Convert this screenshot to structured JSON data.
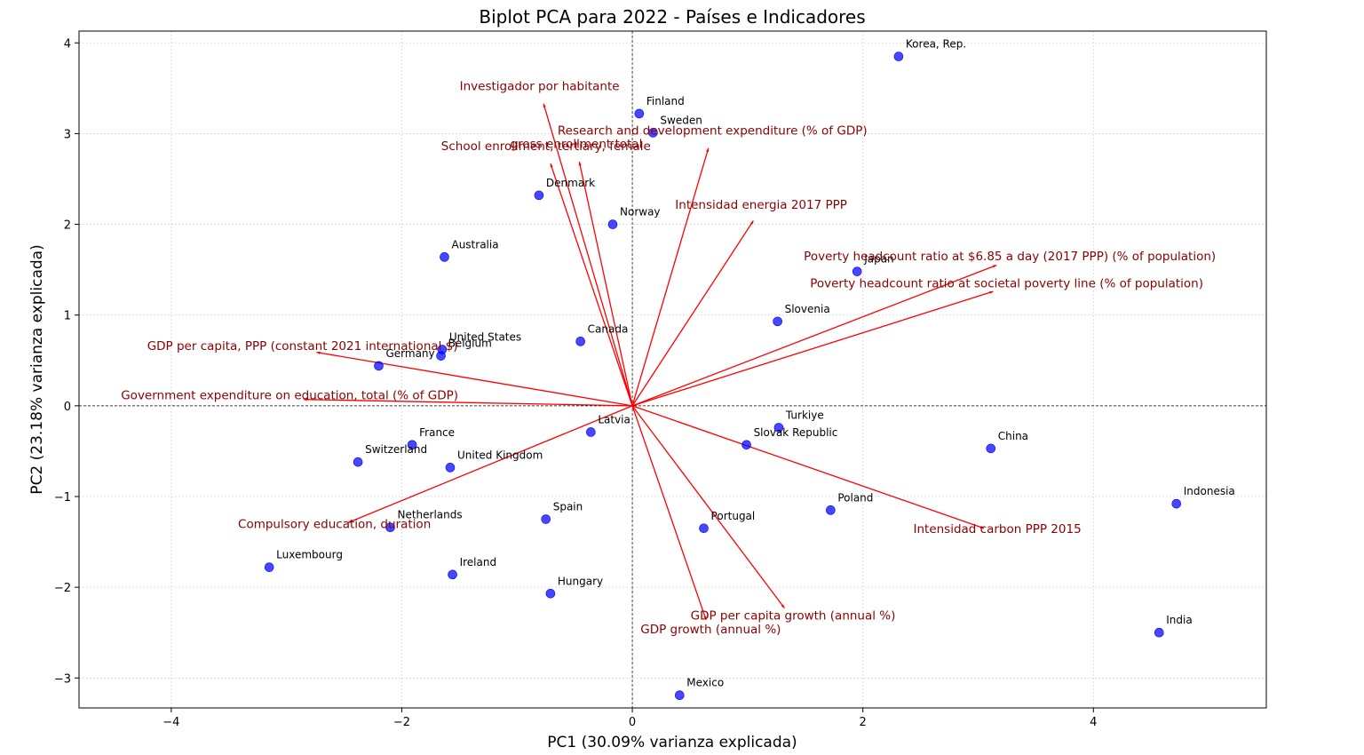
{
  "chart_data": {
    "type": "scatter",
    "title": "Biplot PCA para 2022 - Países e Indicadores",
    "xlabel": "PC1 (30.09% varianza explicada)",
    "ylabel": "PC2 (23.18% varianza explicada)",
    "xlim": [
      -4.8,
      5.5
    ],
    "ylim": [
      -3.33,
      4.13
    ],
    "xticks": [
      -4,
      -2,
      0,
      2,
      4
    ],
    "yticks": [
      -3,
      -2,
      -1,
      0,
      1,
      2,
      3,
      4
    ],
    "xtick_labels": [
      "−4",
      "−2",
      "0",
      "2",
      "4"
    ],
    "ytick_labels": [
      "−3",
      "−2",
      "−1",
      "0",
      "1",
      "2",
      "3",
      "4"
    ],
    "grid": true,
    "point_color": "#0000ff",
    "arrow_color": "#ff0000",
    "indicator_color": "#8b0000",
    "points": [
      {
        "name": "Korea, Rep.",
        "x": 2.31,
        "y": 3.85
      },
      {
        "name": "Finland",
        "x": 0.06,
        "y": 3.22
      },
      {
        "name": "Sweden",
        "x": 0.18,
        "y": 3.01
      },
      {
        "name": "Denmark",
        "x": -0.81,
        "y": 2.32
      },
      {
        "name": "Norway",
        "x": -0.17,
        "y": 2.0
      },
      {
        "name": "Australia",
        "x": -1.63,
        "y": 1.64
      },
      {
        "name": "Japan",
        "x": 1.95,
        "y": 1.48
      },
      {
        "name": "Slovenia",
        "x": 1.26,
        "y": 0.93
      },
      {
        "name": "Canada",
        "x": -0.45,
        "y": 0.71
      },
      {
        "name": "United States",
        "x": -1.65,
        "y": 0.62
      },
      {
        "name": "Belgium",
        "x": -1.66,
        "y": 0.55
      },
      {
        "name": "Germany",
        "x": -2.2,
        "y": 0.44
      },
      {
        "name": "Turkiye",
        "x": 1.27,
        "y": -0.24
      },
      {
        "name": "Latvia",
        "x": -0.36,
        "y": -0.29
      },
      {
        "name": "Slovak Republic",
        "x": 0.99,
        "y": -0.43
      },
      {
        "name": "China",
        "x": 3.11,
        "y": -0.47
      },
      {
        "name": "France",
        "x": -1.91,
        "y": -0.43
      },
      {
        "name": "Switzerland",
        "x": -2.38,
        "y": -0.62
      },
      {
        "name": "United Kingdom",
        "x": -1.58,
        "y": -0.68
      },
      {
        "name": "Indonesia",
        "x": 4.72,
        "y": -1.08
      },
      {
        "name": "Poland",
        "x": 1.72,
        "y": -1.15
      },
      {
        "name": "Spain",
        "x": -0.75,
        "y": -1.25
      },
      {
        "name": "Portugal",
        "x": 0.62,
        "y": -1.35
      },
      {
        "name": "Netherlands",
        "x": -2.1,
        "y": -1.34
      },
      {
        "name": "Luxembourg",
        "x": -3.15,
        "y": -1.78
      },
      {
        "name": "Ireland",
        "x": -1.56,
        "y": -1.86
      },
      {
        "name": "Hungary",
        "x": -0.71,
        "y": -2.07
      },
      {
        "name": "India",
        "x": 4.57,
        "y": -2.5
      },
      {
        "name": "Mexico",
        "x": 0.41,
        "y": -3.19
      }
    ],
    "loadings": [
      {
        "name": "Investigador por habitante",
        "x": -0.77,
        "y": 3.33
      },
      {
        "name": "Research and development expenditure (% of GDP)",
        "x": 0.66,
        "y": 2.84
      },
      {
        "name": "School enrollment, tertiary, female",
        "x": -0.71,
        "y": 2.67
      },
      {
        "name": "gross enrollment total",
        "x": -0.46,
        "y": 2.69
      },
      {
        "name": "Intensidad energia 2017 PPP",
        "x": 1.05,
        "y": 2.04
      },
      {
        "name": "Poverty headcount ratio at $6.85 a day (2017 PPP) (% of population)",
        "x": 3.16,
        "y": 1.55
      },
      {
        "name": "Poverty headcount ratio at societal poverty line (% of population)",
        "x": 3.13,
        "y": 1.26
      },
      {
        "name": "GDP per capita, PPP (constant 2021 international $)",
        "x": -2.74,
        "y": 0.59
      },
      {
        "name": "Government expenditure on education, total (% of GDP)",
        "x": -2.85,
        "y": 0.07
      },
      {
        "name": "Compulsory education, duration",
        "x": -2.47,
        "y": -1.29
      },
      {
        "name": "Intensidad carbon PPP 2015",
        "x": 3.05,
        "y": -1.35
      },
      {
        "name": "GDP per capita growth (annual %)",
        "x": 1.32,
        "y": -2.23
      },
      {
        "name": "GDP growth (annual %)",
        "x": 0.64,
        "y": -2.36
      }
    ]
  }
}
